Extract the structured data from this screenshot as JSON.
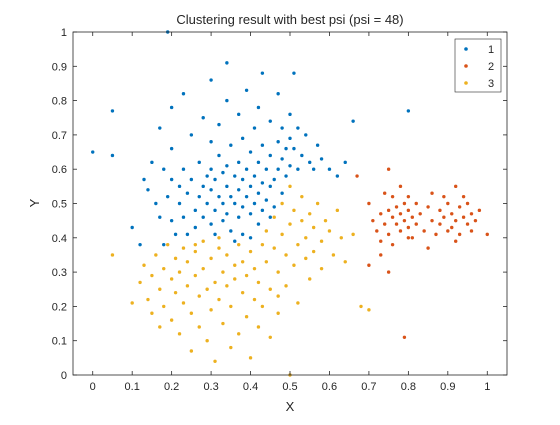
{
  "chart_data": {
    "type": "scatter",
    "title": "Clustering result with best psi (psi = 48)",
    "xlabel": "X",
    "ylabel": "Y",
    "xlim": [
      -0.05,
      1.05
    ],
    "ylim": [
      0,
      1
    ],
    "x_ticks": [
      "0",
      "0.1",
      "0.2",
      "0.3",
      "0.4",
      "0.5",
      "0.6",
      "0.7",
      "0.8",
      "0.9",
      "1"
    ],
    "y_ticks": [
      "0",
      "0.1",
      "0.2",
      "0.3",
      "0.4",
      "0.5",
      "0.6",
      "0.7",
      "0.8",
      "0.9",
      "1"
    ],
    "grid": false,
    "legend": "top-right",
    "series": [
      {
        "name": "1",
        "color": "#0072BD",
        "points": [
          [
            0.0,
            0.65
          ],
          [
            0.05,
            0.77
          ],
          [
            0.05,
            0.64
          ],
          [
            0.1,
            0.43
          ],
          [
            0.12,
            0.38
          ],
          [
            0.13,
            0.57
          ],
          [
            0.14,
            0.54
          ],
          [
            0.15,
            0.62
          ],
          [
            0.16,
            0.5
          ],
          [
            0.17,
            0.72
          ],
          [
            0.17,
            0.46
          ],
          [
            0.18,
            0.6
          ],
          [
            0.18,
            0.38
          ],
          [
            0.19,
            0.52
          ],
          [
            0.2,
            0.78
          ],
          [
            0.2,
            0.66
          ],
          [
            0.2,
            0.57
          ],
          [
            0.2,
            0.45
          ],
          [
            0.21,
            0.41
          ],
          [
            0.22,
            0.55
          ],
          [
            0.22,
            0.5
          ],
          [
            0.23,
            0.82
          ],
          [
            0.23,
            0.6
          ],
          [
            0.23,
            0.46
          ],
          [
            0.24,
            0.53
          ],
          [
            0.24,
            0.41
          ],
          [
            0.25,
            0.7
          ],
          [
            0.25,
            0.57
          ],
          [
            0.26,
            0.48
          ],
          [
            0.26,
            0.43
          ],
          [
            0.27,
            0.62
          ],
          [
            0.27,
            0.52
          ],
          [
            0.28,
            0.75
          ],
          [
            0.28,
            0.55
          ],
          [
            0.28,
            0.46
          ],
          [
            0.29,
            0.58
          ],
          [
            0.29,
            0.5
          ],
          [
            0.3,
            0.86
          ],
          [
            0.3,
            0.68
          ],
          [
            0.3,
            0.6
          ],
          [
            0.3,
            0.54
          ],
          [
            0.3,
            0.44
          ],
          [
            0.31,
            0.57
          ],
          [
            0.31,
            0.48
          ],
          [
            0.31,
            0.41
          ],
          [
            0.32,
            0.73
          ],
          [
            0.32,
            0.64
          ],
          [
            0.32,
            0.52
          ],
          [
            0.33,
            0.59
          ],
          [
            0.33,
            0.5
          ],
          [
            0.33,
            0.45
          ],
          [
            0.34,
            0.91
          ],
          [
            0.34,
            0.8
          ],
          [
            0.34,
            0.61
          ],
          [
            0.34,
            0.55
          ],
          [
            0.34,
            0.47
          ],
          [
            0.35,
            0.67
          ],
          [
            0.35,
            0.52
          ],
          [
            0.35,
            0.42
          ],
          [
            0.36,
            0.58
          ],
          [
            0.36,
            0.5
          ],
          [
            0.36,
            0.39
          ],
          [
            0.37,
            0.76
          ],
          [
            0.37,
            0.62
          ],
          [
            0.37,
            0.54
          ],
          [
            0.37,
            0.46
          ],
          [
            0.38,
            0.69
          ],
          [
            0.38,
            0.57
          ],
          [
            0.38,
            0.49
          ],
          [
            0.38,
            0.41
          ],
          [
            0.39,
            0.83
          ],
          [
            0.39,
            0.6
          ],
          [
            0.39,
            0.52
          ],
          [
            0.4,
            0.65
          ],
          [
            0.4,
            0.55
          ],
          [
            0.4,
            0.47
          ],
          [
            0.4,
            0.4
          ],
          [
            0.41,
            0.72
          ],
          [
            0.41,
            0.58
          ],
          [
            0.41,
            0.5
          ],
          [
            0.42,
            0.78
          ],
          [
            0.42,
            0.62
          ],
          [
            0.42,
            0.53
          ],
          [
            0.42,
            0.44
          ],
          [
            0.43,
            0.88
          ],
          [
            0.43,
            0.67
          ],
          [
            0.43,
            0.56
          ],
          [
            0.43,
            0.48
          ],
          [
            0.44,
            0.6
          ],
          [
            0.44,
            0.51
          ],
          [
            0.45,
            0.74
          ],
          [
            0.45,
            0.64
          ],
          [
            0.45,
            0.55
          ],
          [
            0.45,
            0.46
          ],
          [
            0.46,
            0.57
          ],
          [
            0.46,
            0.49
          ],
          [
            0.47,
            0.82
          ],
          [
            0.47,
            0.68
          ],
          [
            0.47,
            0.6
          ],
          [
            0.48,
            0.72
          ],
          [
            0.48,
            0.63
          ],
          [
            0.48,
            0.53
          ],
          [
            0.49,
            0.66
          ],
          [
            0.49,
            0.58
          ],
          [
            0.5,
            0.76
          ],
          [
            0.5,
            0.69
          ],
          [
            0.5,
            0.61
          ],
          [
            0.51,
            0.88
          ],
          [
            0.51,
            0.66
          ],
          [
            0.52,
            0.72
          ],
          [
            0.52,
            0.6
          ],
          [
            0.53,
            0.64
          ],
          [
            0.54,
            0.7
          ],
          [
            0.55,
            0.62
          ],
          [
            0.56,
            0.6
          ],
          [
            0.57,
            0.67
          ],
          [
            0.58,
            0.63
          ],
          [
            0.6,
            0.6
          ],
          [
            0.62,
            0.58
          ],
          [
            0.64,
            0.62
          ],
          [
            0.66,
            0.74
          ],
          [
            0.8,
            0.77
          ],
          [
            0.19,
            1.0
          ]
        ]
      },
      {
        "name": "2",
        "color": "#D95319",
        "points": [
          [
            0.67,
            0.58
          ],
          [
            0.7,
            0.5
          ],
          [
            0.71,
            0.45
          ],
          [
            0.72,
            0.42
          ],
          [
            0.73,
            0.47
          ],
          [
            0.73,
            0.39
          ],
          [
            0.74,
            0.53
          ],
          [
            0.74,
            0.44
          ],
          [
            0.75,
            0.6
          ],
          [
            0.75,
            0.41
          ],
          [
            0.75,
            0.48
          ],
          [
            0.76,
            0.46
          ],
          [
            0.76,
            0.38
          ],
          [
            0.76,
            0.52
          ],
          [
            0.77,
            0.44
          ],
          [
            0.77,
            0.49
          ],
          [
            0.78,
            0.42
          ],
          [
            0.78,
            0.55
          ],
          [
            0.78,
            0.47
          ],
          [
            0.79,
            0.45
          ],
          [
            0.79,
            0.5
          ],
          [
            0.8,
            0.43
          ],
          [
            0.8,
            0.48
          ],
          [
            0.8,
            0.52
          ],
          [
            0.81,
            0.46
          ],
          [
            0.81,
            0.4
          ],
          [
            0.82,
            0.5
          ],
          [
            0.82,
            0.44
          ],
          [
            0.83,
            0.47
          ],
          [
            0.84,
            0.42
          ],
          [
            0.85,
            0.49
          ],
          [
            0.86,
            0.53
          ],
          [
            0.86,
            0.45
          ],
          [
            0.87,
            0.41
          ],
          [
            0.88,
            0.48
          ],
          [
            0.88,
            0.44
          ],
          [
            0.89,
            0.52
          ],
          [
            0.89,
            0.46
          ],
          [
            0.9,
            0.42
          ],
          [
            0.9,
            0.5
          ],
          [
            0.91,
            0.47
          ],
          [
            0.91,
            0.43
          ],
          [
            0.92,
            0.55
          ],
          [
            0.92,
            0.45
          ],
          [
            0.93,
            0.49
          ],
          [
            0.93,
            0.41
          ],
          [
            0.94,
            0.52
          ],
          [
            0.94,
            0.46
          ],
          [
            0.95,
            0.44
          ],
          [
            0.95,
            0.5
          ],
          [
            0.96,
            0.47
          ],
          [
            0.96,
            0.42
          ],
          [
            0.97,
            0.45
          ],
          [
            0.98,
            0.48
          ],
          [
            1.0,
            0.41
          ],
          [
            0.73,
            0.35
          ],
          [
            0.7,
            0.32
          ],
          [
            0.75,
            0.3
          ],
          [
            0.79,
            0.11
          ],
          [
            0.8,
            0.4
          ],
          [
            0.92,
            0.39
          ],
          [
            0.85,
            0.37
          ]
        ]
      },
      {
        "name": "3",
        "color": "#EDB120",
        "points": [
          [
            0.05,
            0.35
          ],
          [
            0.1,
            0.21
          ],
          [
            0.12,
            0.27
          ],
          [
            0.13,
            0.32
          ],
          [
            0.14,
            0.22
          ],
          [
            0.15,
            0.18
          ],
          [
            0.15,
            0.29
          ],
          [
            0.16,
            0.35
          ],
          [
            0.17,
            0.25
          ],
          [
            0.17,
            0.14
          ],
          [
            0.18,
            0.31
          ],
          [
            0.18,
            0.2
          ],
          [
            0.19,
            0.38
          ],
          [
            0.2,
            0.28
          ],
          [
            0.2,
            0.16
          ],
          [
            0.21,
            0.34
          ],
          [
            0.21,
            0.24
          ],
          [
            0.22,
            0.12
          ],
          [
            0.22,
            0.3
          ],
          [
            0.23,
            0.37
          ],
          [
            0.23,
            0.21
          ],
          [
            0.24,
            0.26
          ],
          [
            0.24,
            0.33
          ],
          [
            0.25,
            0.07
          ],
          [
            0.25,
            0.18
          ],
          [
            0.26,
            0.29
          ],
          [
            0.26,
            0.36
          ],
          [
            0.27,
            0.23
          ],
          [
            0.27,
            0.14
          ],
          [
            0.28,
            0.31
          ],
          [
            0.28,
            0.39
          ],
          [
            0.29,
            0.25
          ],
          [
            0.29,
            0.1
          ],
          [
            0.3,
            0.34
          ],
          [
            0.3,
            0.19
          ],
          [
            0.31,
            0.27
          ],
          [
            0.31,
            0.04
          ],
          [
            0.32,
            0.37
          ],
          [
            0.32,
            0.22
          ],
          [
            0.33,
            0.3
          ],
          [
            0.33,
            0.15
          ],
          [
            0.34,
            0.26
          ],
          [
            0.34,
            0.35
          ],
          [
            0.35,
            0.08
          ],
          [
            0.35,
            0.2
          ],
          [
            0.36,
            0.32
          ],
          [
            0.36,
            0.28
          ],
          [
            0.37,
            0.12
          ],
          [
            0.37,
            0.38
          ],
          [
            0.38,
            0.24
          ],
          [
            0.38,
            0.33
          ],
          [
            0.39,
            0.17
          ],
          [
            0.39,
            0.29
          ],
          [
            0.4,
            0.36
          ],
          [
            0.4,
            0.05
          ],
          [
            0.41,
            0.22
          ],
          [
            0.41,
            0.31
          ],
          [
            0.42,
            0.27
          ],
          [
            0.42,
            0.14
          ],
          [
            0.43,
            0.38
          ],
          [
            0.43,
            0.2
          ],
          [
            0.44,
            0.33
          ],
          [
            0.44,
            0.42
          ],
          [
            0.45,
            0.25
          ],
          [
            0.45,
            0.11
          ],
          [
            0.46,
            0.37
          ],
          [
            0.46,
            0.46
          ],
          [
            0.47,
            0.3
          ],
          [
            0.47,
            0.18
          ],
          [
            0.48,
            0.41
          ],
          [
            0.48,
            0.5
          ],
          [
            0.49,
            0.35
          ],
          [
            0.49,
            0.26
          ],
          [
            0.5,
            0.44
          ],
          [
            0.5,
            0.55
          ],
          [
            0.51,
            0.32
          ],
          [
            0.51,
            0.48
          ],
          [
            0.52,
            0.38
          ],
          [
            0.52,
            0.21
          ],
          [
            0.53,
            0.45
          ],
          [
            0.53,
            0.52
          ],
          [
            0.54,
            0.34
          ],
          [
            0.54,
            0.4
          ],
          [
            0.55,
            0.47
          ],
          [
            0.55,
            0.28
          ],
          [
            0.56,
            0.43
          ],
          [
            0.56,
            0.36
          ],
          [
            0.57,
            0.5
          ],
          [
            0.58,
            0.39
          ],
          [
            0.58,
            0.31
          ],
          [
            0.59,
            0.45
          ],
          [
            0.6,
            0.42
          ],
          [
            0.61,
            0.35
          ],
          [
            0.62,
            0.48
          ],
          [
            0.63,
            0.4
          ],
          [
            0.64,
            0.33
          ],
          [
            0.66,
            0.41
          ],
          [
            0.68,
            0.2
          ],
          [
            0.7,
            0.19
          ],
          [
            0.5,
            0.0
          ],
          [
            0.26,
            0.38
          ],
          [
            0.32,
            0.4
          ],
          [
            0.47,
            0.23
          ]
        ]
      }
    ]
  }
}
